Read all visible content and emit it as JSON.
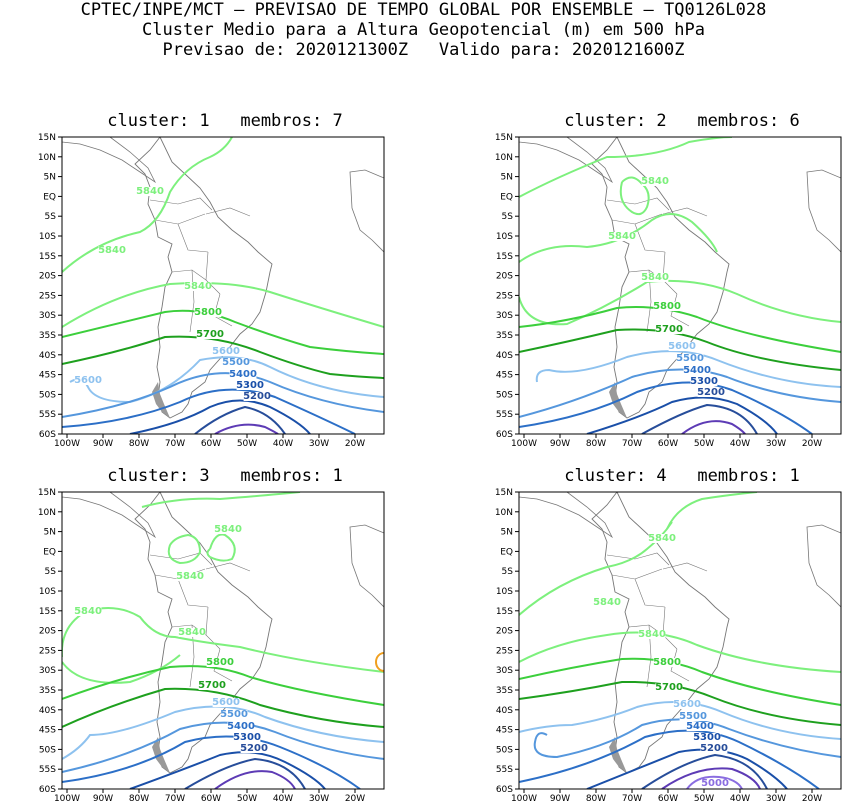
{
  "header": {
    "line1": "CPTEC/INPE/MCT – PREVISAO DE TEMPO GLOBAL POR ENSEMBLE – TQ0126L028",
    "line2": "Cluster Medio para a Altura Geopotencial (m) em 500 hPa",
    "line3": "Previsao de: 2020121300Z   Valido para: 2020121600Z"
  },
  "axes": {
    "lat_labels": [
      "15N",
      "10N",
      "5N",
      "EQ",
      "5S",
      "10S",
      "15S",
      "20S",
      "25S",
      "30S",
      "35S",
      "40S",
      "45S",
      "50S",
      "55S",
      "60S"
    ],
    "lon_labels": [
      "100W",
      "90W",
      "80W",
      "70W",
      "60W",
      "50W",
      "40W",
      "30W",
      "20W"
    ]
  },
  "colors": {
    "c5840": "#7df07d",
    "c5800": "#3ccf3c",
    "c5700": "#1ea01e",
    "c5600": "#8ec2ef",
    "c5500": "#5597dd",
    "c5400": "#2c6fc7",
    "c5300": "#1a4fa8",
    "c5200": "#274d9a",
    "c5100": "#5d3bb5",
    "c5000": "#8a6de0",
    "orange": "#f0a020",
    "coast": "#777777"
  },
  "panels": [
    {
      "title": "cluster: 1   membros: 7",
      "labels": {
        "l5840a": "5840",
        "l5840b": "5840",
        "l5840c": "5840",
        "l5800": "5800",
        "l5700": "5700",
        "l5600": "5600",
        "l5600b": "5600",
        "l5500": "5500",
        "l5400": "5400",
        "l5300": "5300",
        "l5200": "5200"
      }
    },
    {
      "title": "cluster: 2   membros: 6",
      "labels": {
        "l5840a": "5840",
        "l5840b": "5840",
        "l5840c": "5840",
        "l5800": "5800",
        "l5700": "5700",
        "l5600": "5600",
        "l5500": "5500",
        "l5400": "5400",
        "l5300": "5300",
        "l5200": "5200"
      }
    },
    {
      "title": "cluster: 3   membros: 1",
      "labels": {
        "l5840a": "5840",
        "l5840b": "5840",
        "l5840c": "5840",
        "l5840d": "5840",
        "l5800": "5800",
        "l5700": "5700",
        "l5600": "5600",
        "l5500": "5500",
        "l5400": "5400",
        "l5300": "5300",
        "l5200": "5200"
      }
    },
    {
      "title": "cluster: 4   membros: 1",
      "labels": {
        "l5840a": "5840",
        "l5840b": "5840",
        "l5840c": "5840",
        "l5800": "5800",
        "l5700": "5700",
        "l5600": "5600",
        "l5500": "5500",
        "l5400": "5400",
        "l5300": "5300",
        "l5200": "5200",
        "l5000": "5000"
      }
    }
  ],
  "chart_data": [
    {
      "type": "contour",
      "title": "cluster: 1   membros: 7",
      "variable": "Altura Geopotencial (m) em 500 hPa",
      "xrange": [
        "100W",
        "10W"
      ],
      "yrange": [
        "60S",
        "15N"
      ],
      "contour_levels": [
        5840,
        5800,
        5700,
        5600,
        5500,
        5400,
        5300,
        5200
      ],
      "labels_shown": [
        5840,
        5840,
        5840,
        5800,
        5700,
        5600,
        5600,
        5500,
        5400,
        5300,
        5200
      ]
    },
    {
      "type": "contour",
      "title": "cluster: 2   membros: 6",
      "variable": "Altura Geopotencial (m) em 500 hPa",
      "xrange": [
        "100W",
        "10W"
      ],
      "yrange": [
        "60S",
        "15N"
      ],
      "contour_levels": [
        5840,
        5800,
        5700,
        5600,
        5500,
        5400,
        5300,
        5200
      ],
      "labels_shown": [
        5840,
        5840,
        5840,
        5800,
        5700,
        5600,
        5500,
        5400,
        5300,
        5200
      ]
    },
    {
      "type": "contour",
      "title": "cluster: 3   membros: 1",
      "variable": "Altura Geopotencial (m) em 500 hPa",
      "xrange": [
        "100W",
        "10W"
      ],
      "yrange": [
        "60S",
        "15N"
      ],
      "contour_levels": [
        5840,
        5800,
        5700,
        5600,
        5500,
        5400,
        5300,
        5200,
        5100
      ],
      "labels_shown": [
        5840,
        5840,
        5840,
        5840,
        5800,
        5700,
        5600,
        5500,
        5400,
        5300,
        5200
      ]
    },
    {
      "type": "contour",
      "title": "cluster: 4   membros: 1",
      "variable": "Altura Geopotencial (m) em 500 hPa",
      "xrange": [
        "100W",
        "10W"
      ],
      "yrange": [
        "60S",
        "15N"
      ],
      "contour_levels": [
        5840,
        5800,
        5700,
        5600,
        5500,
        5400,
        5300,
        5200,
        5100,
        5000
      ],
      "labels_shown": [
        5840,
        5840,
        5840,
        5800,
        5700,
        5600,
        5500,
        5400,
        5300,
        5200,
        5000
      ]
    }
  ]
}
